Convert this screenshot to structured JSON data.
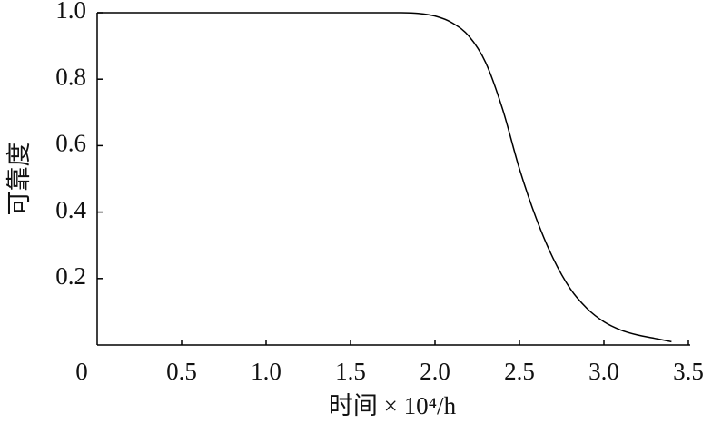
{
  "chart_data": {
    "type": "line",
    "x_label": "时间 × 10⁴/h",
    "y_label": "可靠度",
    "x": [
      0,
      0.5,
      1.0,
      1.5,
      1.8,
      1.9,
      2.0,
      2.1,
      2.2,
      2.3,
      2.4,
      2.5,
      2.6,
      2.7,
      2.8,
      2.9,
      3.0,
      3.1,
      3.2,
      3.3,
      3.4
    ],
    "series": [
      {
        "color": "#000000",
        "values": [
          1.0,
          1.0,
          1.0,
          1.0,
          1.0,
          0.998,
          0.99,
          0.97,
          0.93,
          0.85,
          0.71,
          0.53,
          0.38,
          0.26,
          0.17,
          0.11,
          0.07,
          0.045,
          0.03,
          0.02,
          0.01
        ]
      }
    ],
    "xlim": [
      0,
      3.5
    ],
    "ylim": [
      0,
      1.0
    ],
    "xticks": [
      0,
      0.5,
      {
        "value": 1,
        "label": "1.0"
      },
      1.5,
      {
        "value": 2,
        "label": "2.0"
      },
      2.5,
      {
        "value": 3,
        "label": "3.0"
      },
      3.5
    ],
    "yticks": [
      0.2,
      0.4,
      0.6,
      0.8,
      {
        "value": 1,
        "label": "1.0"
      }
    ],
    "grid": false
  }
}
